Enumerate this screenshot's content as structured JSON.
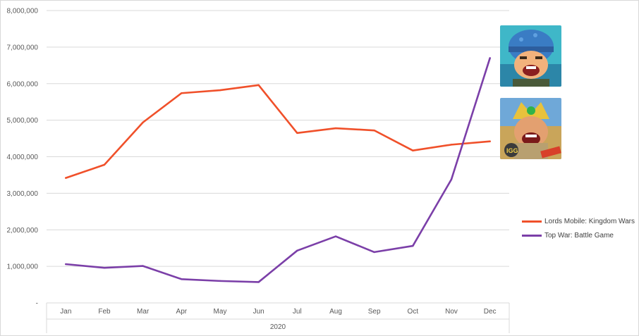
{
  "chart_data": {
    "type": "line",
    "categories": [
      "Jan",
      "Feb",
      "Mar",
      "Apr",
      "May",
      "Jun",
      "Jul",
      "Aug",
      "Sep",
      "Oct",
      "Nov",
      "Dec"
    ],
    "group_label": "2020",
    "ylim": [
      0,
      8000000
    ],
    "yticks": [
      0,
      1000000,
      2000000,
      3000000,
      4000000,
      5000000,
      6000000,
      7000000,
      8000000
    ],
    "ytick_labels": [
      "-",
      "1,000,000",
      "2,000,000",
      "3,000,000",
      "4,000,000",
      "5,000,000",
      "6,000,000",
      "7,000,000",
      "8,000,000"
    ],
    "grid": true,
    "legend_position": "right",
    "series": [
      {
        "name": "Lords Mobile: Kingdom Wars",
        "color": "#f0502a",
        "values": [
          3420000,
          3780000,
          4940000,
          5740000,
          5820000,
          5960000,
          4650000,
          4780000,
          4720000,
          4170000,
          4330000,
          4420000
        ]
      },
      {
        "name": "Top War: Battle Game",
        "color": "#7b3fa8",
        "values": [
          1060000,
          960000,
          1010000,
          650000,
          600000,
          570000,
          1430000,
          1820000,
          1390000,
          1560000,
          3380000,
          6700000
        ]
      }
    ]
  },
  "icons": {
    "top_war": "top-war-app-icon",
    "lords_mobile": "lords-mobile-app-icon"
  }
}
